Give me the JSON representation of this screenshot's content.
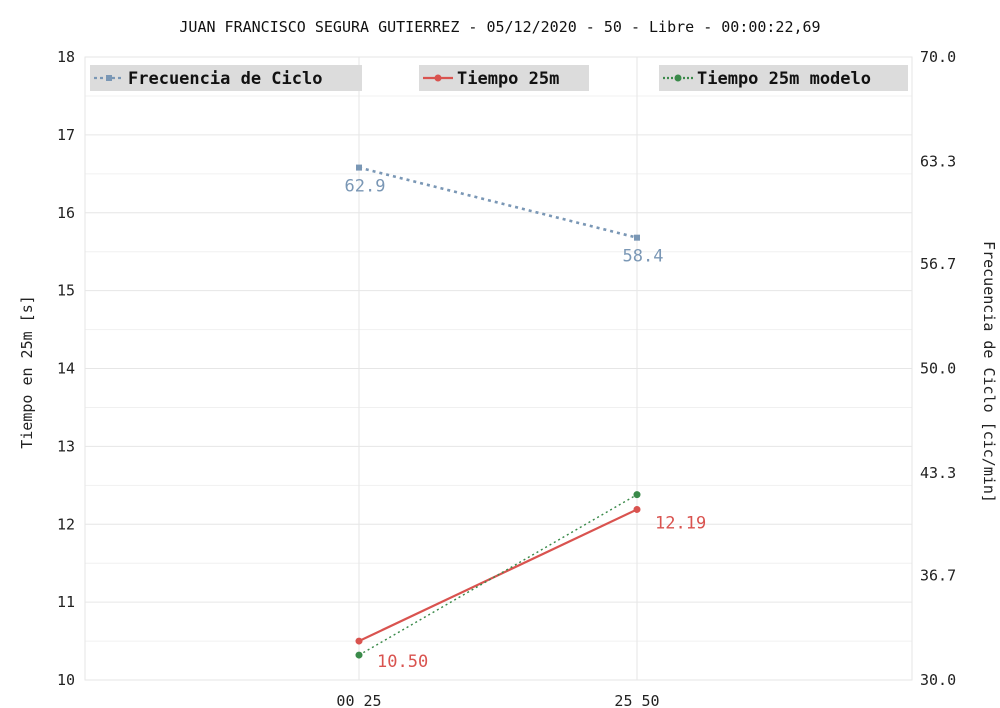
{
  "chart_data": {
    "type": "line",
    "title": "JUAN FRANCISCO SEGURA GUTIERREZ - 05/12/2020 - 50 - Libre - 00:00:22,69",
    "categories": [
      "00 25",
      "25 50"
    ],
    "y_left": {
      "label": "Tiempo en 25m [s]",
      "range": [
        10,
        18
      ],
      "ticks": [
        "10",
        "11",
        "12",
        "13",
        "14",
        "15",
        "16",
        "17",
        "18"
      ]
    },
    "y_right": {
      "label": "Frecuencia de Ciclo [cic/min]",
      "range": [
        30.0,
        70.0
      ],
      "ticks": [
        "30.0",
        "36.7",
        "43.3",
        "50.0",
        "56.7",
        "63.3",
        "70.0"
      ]
    },
    "grid": true,
    "legend_placement": "top",
    "series": [
      {
        "name": "Frecuencia de Ciclo",
        "axis": "right",
        "style": "dotted",
        "color": "#7a97b5",
        "values": [
          62.9,
          58.4
        ],
        "labels": [
          "62.9",
          "58.4"
        ]
      },
      {
        "name": "Tiempo 25m",
        "axis": "left",
        "style": "solid",
        "color": "#d9534f",
        "values": [
          10.5,
          12.19
        ],
        "labels": [
          "10.50",
          "12.19"
        ]
      },
      {
        "name": "Tiempo 25m modelo",
        "axis": "left",
        "style": "dotted-thin",
        "color": "#3a8a4a",
        "values": [
          10.32,
          12.38
        ],
        "labels": []
      }
    ]
  }
}
